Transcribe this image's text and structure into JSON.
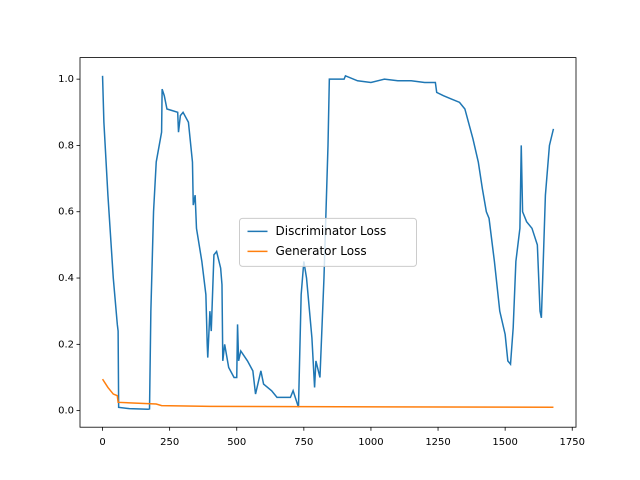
{
  "chart_data": {
    "type": "line",
    "xlim": [
      -84,
      1764
    ],
    "ylim": [
      -0.05,
      1.065
    ],
    "xticks": [
      0,
      250,
      500,
      750,
      1000,
      1250,
      1500,
      1750
    ],
    "yticks": [
      {
        "value": 0,
        "label": "0.0"
      },
      {
        "value": 0.2,
        "label": "0.2"
      },
      {
        "value": 0.4,
        "label": "0.4"
      },
      {
        "value": 0.6,
        "label": "0.6"
      },
      {
        "value": 0.8,
        "label": "0.8"
      },
      {
        "value": 1,
        "label": "1.0"
      }
    ],
    "legend": "center",
    "series": [
      {
        "name": "Discriminator Loss",
        "color": "#1f77b4",
        "x": [
          0,
          5,
          20,
          40,
          55,
          58,
          60,
          100,
          170,
          175,
          180,
          190,
          200,
          220,
          222,
          230,
          240,
          260,
          280,
          283,
          290,
          300,
          320,
          335,
          338,
          345,
          350,
          370,
          385,
          390,
          392,
          400,
          405,
          415,
          425,
          440,
          445,
          448,
          455,
          470,
          490,
          500,
          503,
          507,
          515,
          540,
          560,
          570,
          590,
          600,
          630,
          650,
          700,
          710,
          730,
          740,
          750,
          760,
          780,
          790,
          795,
          810,
          825,
          840,
          845,
          900,
          905,
          950,
          1000,
          1050,
          1100,
          1150,
          1200,
          1240,
          1245,
          1270,
          1300,
          1330,
          1350,
          1380,
          1400,
          1415,
          1430,
          1440,
          1460,
          1480,
          1500,
          1510,
          1520,
          1530,
          1540,
          1555,
          1560,
          1565,
          1580,
          1600,
          1620,
          1630,
          1635,
          1640,
          1650,
          1665,
          1680
        ],
        "values": [
          1.01,
          0.87,
          0.65,
          0.4,
          0.26,
          0.24,
          0.01,
          0.006,
          0.004,
          0.005,
          0.3,
          0.6,
          0.75,
          0.84,
          0.97,
          0.95,
          0.91,
          0.905,
          0.9,
          0.84,
          0.89,
          0.9,
          0.87,
          0.75,
          0.62,
          0.65,
          0.55,
          0.45,
          0.35,
          0.2,
          0.16,
          0.3,
          0.24,
          0.47,
          0.48,
          0.43,
          0.38,
          0.15,
          0.2,
          0.13,
          0.1,
          0.1,
          0.26,
          0.15,
          0.18,
          0.15,
          0.12,
          0.05,
          0.12,
          0.08,
          0.06,
          0.04,
          0.04,
          0.06,
          0.01,
          0.35,
          0.45,
          0.4,
          0.22,
          0.07,
          0.15,
          0.1,
          0.4,
          0.8,
          1.0,
          1.0,
          1.01,
          0.995,
          0.99,
          1.0,
          0.995,
          0.995,
          0.99,
          0.99,
          0.96,
          0.95,
          0.94,
          0.93,
          0.91,
          0.82,
          0.75,
          0.67,
          0.6,
          0.58,
          0.45,
          0.3,
          0.23,
          0.15,
          0.14,
          0.25,
          0.45,
          0.55,
          0.8,
          0.6,
          0.57,
          0.55,
          0.5,
          0.3,
          0.28,
          0.4,
          0.65,
          0.8,
          0.85
        ]
      },
      {
        "name": "Generator Loss",
        "color": "#ff7f0e",
        "x": [
          0,
          20,
          40,
          55,
          58,
          200,
          220,
          400,
          1680
        ],
        "values": [
          0.095,
          0.07,
          0.05,
          0.045,
          0.025,
          0.02,
          0.015,
          0.013,
          0.01
        ]
      }
    ]
  }
}
